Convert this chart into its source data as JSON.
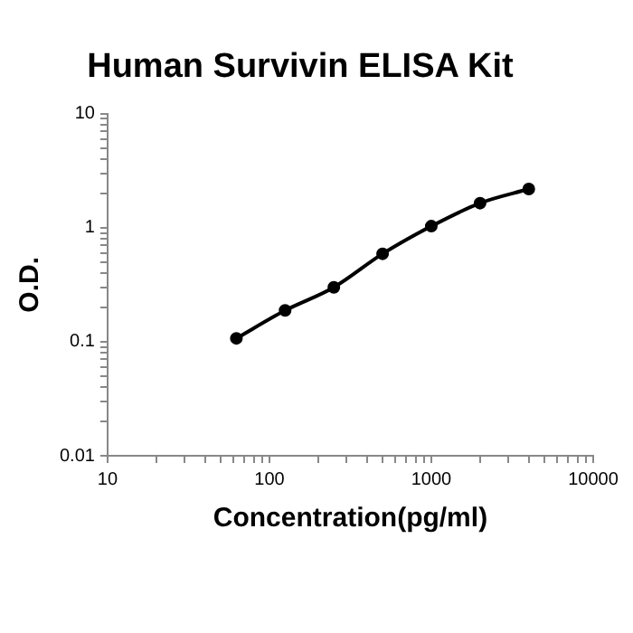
{
  "chart_data": {
    "type": "line",
    "title": "Human Survivin ELISA Kit",
    "xlabel": "Concentration(pg/ml)",
    "ylabel": "O.D.",
    "x": [
      62.5,
      125,
      250,
      500,
      1000,
      2000,
      4000
    ],
    "series": [
      {
        "color": "#000000",
        "values": [
          0.107,
          0.188,
          0.3,
          0.59,
          1.03,
          1.64,
          2.18
        ]
      }
    ],
    "log": "xy",
    "xlim": [
      10,
      10000
    ],
    "ylim": [
      0.01,
      10
    ],
    "xticks": [
      10,
      {
        "value": 20,
        "label": null
      },
      {
        "value": 30,
        "label": null
      },
      {
        "value": 40,
        "label": null
      },
      {
        "value": 50,
        "label": null
      },
      {
        "value": 60,
        "label": null
      },
      {
        "value": 70,
        "label": null
      },
      {
        "value": 80,
        "label": null
      },
      {
        "value": 90,
        "label": null
      },
      100,
      {
        "value": 200,
        "label": null
      },
      {
        "value": 300,
        "label": null
      },
      {
        "value": 400,
        "label": null
      },
      {
        "value": 500,
        "label": null
      },
      {
        "value": 600,
        "label": null
      },
      {
        "value": 700,
        "label": null
      },
      {
        "value": 800,
        "label": null
      },
      {
        "value": 900,
        "label": null
      },
      1000,
      {
        "value": 2000,
        "label": null
      },
      {
        "value": 3000,
        "label": null
      },
      {
        "value": 4000,
        "label": null
      },
      {
        "value": 5000,
        "label": null
      },
      {
        "value": 6000,
        "label": null
      },
      {
        "value": 7000,
        "label": null
      },
      {
        "value": 8000,
        "label": null
      },
      {
        "value": 9000,
        "label": null
      },
      10000
    ],
    "yticks": [
      0.01,
      {
        "value": 0.02,
        "label": null
      },
      {
        "value": 0.03,
        "label": null
      },
      {
        "value": 0.04,
        "label": null
      },
      {
        "value": 0.05,
        "label": null
      },
      {
        "value": 0.06,
        "label": null
      },
      {
        "value": 0.07,
        "label": null
      },
      {
        "value": 0.08,
        "label": null
      },
      {
        "value": 0.09,
        "label": null
      },
      0.1,
      {
        "value": 0.2,
        "label": null
      },
      {
        "value": 0.3,
        "label": null
      },
      {
        "value": 0.4,
        "label": null
      },
      {
        "value": 0.5,
        "label": null
      },
      {
        "value": 0.6,
        "label": null
      },
      {
        "value": 0.7,
        "label": null
      },
      {
        "value": 0.8,
        "label": null
      },
      {
        "value": 0.9,
        "label": null
      },
      1,
      {
        "value": 2,
        "label": null
      },
      {
        "value": 3,
        "label": null
      },
      {
        "value": 4,
        "label": null
      },
      {
        "value": 5,
        "label": null
      },
      {
        "value": 6,
        "label": null
      },
      {
        "value": 7,
        "label": null
      },
      {
        "value": 8,
        "label": null
      },
      {
        "value": 9,
        "label": null
      },
      10
    ],
    "grid": false,
    "legend": false,
    "marker": "circle",
    "line_style": "solid"
  }
}
